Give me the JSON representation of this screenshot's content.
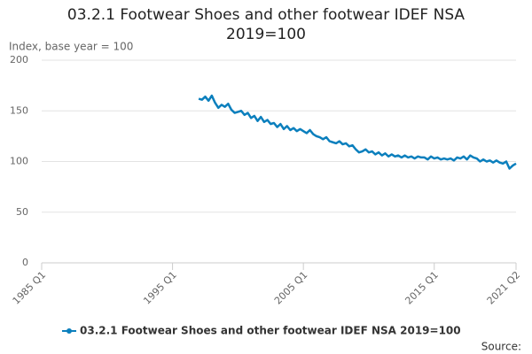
{
  "chart_data": {
    "type": "line",
    "title": "03.2.1 Footwear Shoes and other footwear IDEF NSA 2019=100",
    "y_label": "Index, base year = 100",
    "source": "Source:",
    "categories": [
      "1985 Q1",
      null,
      null,
      null,
      null,
      null,
      null,
      null,
      null,
      null,
      null,
      null,
      null,
      null,
      null,
      null,
      null,
      null,
      null,
      null,
      null,
      null,
      null,
      null,
      null,
      null,
      null,
      null,
      null,
      null,
      null,
      null,
      null,
      null,
      null,
      null,
      null,
      null,
      null,
      null,
      "1995 Q1",
      null,
      null,
      null,
      null,
      null,
      null,
      null,
      null,
      null,
      null,
      null,
      null,
      null,
      null,
      null,
      null,
      null,
      null,
      null,
      null,
      null,
      null,
      null,
      null,
      null,
      null,
      null,
      null,
      null,
      null,
      null,
      null,
      null,
      null,
      null,
      null,
      null,
      null,
      null,
      "2005 Q1",
      null,
      null,
      null,
      null,
      null,
      null,
      null,
      null,
      null,
      null,
      null,
      null,
      null,
      null,
      null,
      null,
      null,
      null,
      null,
      null,
      null,
      null,
      null,
      null,
      null,
      null,
      null,
      null,
      null,
      null,
      null,
      null,
      null,
      null,
      null,
      null,
      null,
      null,
      null,
      "2015 Q1",
      null,
      null,
      null,
      null,
      null,
      null,
      null,
      null,
      null,
      null,
      null,
      null,
      null,
      null,
      null,
      null,
      null,
      null,
      null,
      null,
      null,
      null,
      null,
      null,
      "2021 Q2"
    ],
    "series": [
      {
        "name": "03.2.1 Footwear Shoes and other footwear IDEF NSA 2019=100",
        "color": "#0b7fbd",
        "values": [
          null,
          null,
          null,
          null,
          null,
          null,
          null,
          null,
          null,
          null,
          null,
          null,
          null,
          null,
          null,
          null,
          null,
          null,
          null,
          null,
          null,
          null,
          null,
          null,
          null,
          null,
          null,
          null,
          null,
          null,
          null,
          null,
          null,
          null,
          null,
          null,
          null,
          null,
          null,
          null,
          null,
          null,
          null,
          null,
          null,
          null,
          null,
          null,
          162,
          161,
          164,
          160,
          165,
          158,
          153,
          156,
          154,
          157,
          151,
          148,
          149,
          150,
          146,
          148,
          143,
          145,
          140,
          144,
          139,
          141,
          137,
          138,
          134,
          137,
          132,
          135,
          131,
          133,
          130,
          132,
          130,
          128,
          131,
          127,
          125,
          124,
          122,
          124,
          120,
          119,
          118,
          120,
          117,
          118,
          115,
          116,
          112,
          109,
          110,
          112,
          109,
          110,
          107,
          109,
          106,
          108,
          105,
          107,
          105,
          106,
          104,
          106,
          104,
          105,
          103,
          105,
          104,
          104,
          102,
          105,
          103,
          104,
          102,
          103,
          102,
          103,
          101,
          104,
          103,
          105,
          102,
          106,
          104,
          103,
          100,
          102,
          100,
          101,
          99,
          101,
          99,
          98,
          100,
          93,
          96,
          98
        ]
      }
    ],
    "ylim": [
      0,
      200
    ],
    "yticks": [
      0,
      50,
      100,
      150,
      200
    ],
    "grid": true
  }
}
